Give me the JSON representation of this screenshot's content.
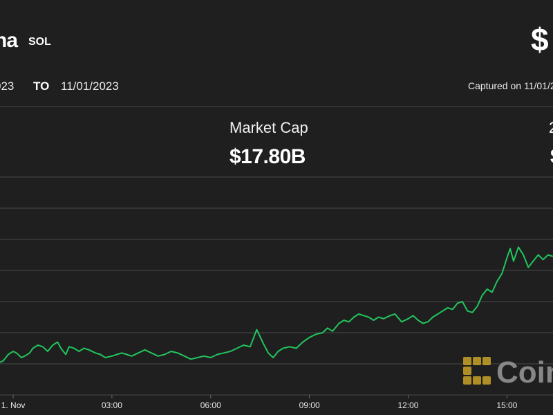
{
  "header": {
    "asset_name": "na",
    "asset_symbol": "SOL",
    "price": "$",
    "date_from": "023",
    "date_sep": "TO",
    "date_to": "11/01/2023",
    "captured": "Captured on 11/01/2"
  },
  "stats": {
    "market_cap_label": "Market Cap",
    "market_cap_value": "$17.80B",
    "volume_label_partial": "2",
    "volume_value_partial": "$"
  },
  "watermark": {
    "text": "Coin",
    "icon": "coindesk-logo-icon",
    "color": "#c9a227"
  },
  "chart_data": {
    "type": "line",
    "color": "#22c55e",
    "x_tick_labels": [
      "1. Nov",
      "03:00",
      "06:00",
      "09:00",
      "12:00",
      "15:00"
    ],
    "x_tick_hours": [
      0,
      3,
      6,
      9,
      12,
      15
    ],
    "x_range_hours": [
      -0.4,
      16.4
    ],
    "y_range": [
      0,
      7
    ],
    "grid": true,
    "series": [
      {
        "hours": [
          -0.4,
          -0.3,
          -0.15,
          0,
          0.1,
          0.25,
          0.35,
          0.5,
          0.6,
          0.75,
          0.9,
          1.05,
          1.2,
          1.35,
          1.45,
          1.6,
          1.7,
          1.85,
          2.0,
          2.15,
          2.3,
          2.5,
          2.65,
          2.8,
          3.0,
          3.15,
          3.3,
          3.45,
          3.6,
          3.8,
          4.0,
          4.2,
          4.4,
          4.6,
          4.8,
          5.0,
          5.2,
          5.4,
          5.6,
          5.8,
          6.0,
          6.2,
          6.4,
          6.6,
          6.8,
          7.0,
          7.2,
          7.4,
          7.6,
          7.75,
          7.9,
          8.05,
          8.2,
          8.4,
          8.6,
          8.8,
          9.0,
          9.2,
          9.4,
          9.55,
          9.7,
          9.9,
          10.05,
          10.2,
          10.35,
          10.5,
          10.65,
          10.8,
          10.95,
          11.1,
          11.25,
          11.45,
          11.6,
          11.8,
          12.0,
          12.15,
          12.3,
          12.45,
          12.6,
          12.75,
          12.9,
          13.05,
          13.2,
          13.35,
          13.5,
          13.65,
          13.8,
          13.95,
          14.1,
          14.25,
          14.4,
          14.55,
          14.7,
          14.85,
          15.0,
          15.1,
          15.2,
          15.35,
          15.5,
          15.65,
          15.8,
          15.95,
          16.1,
          16.25,
          16.4
        ],
        "values": [
          1.05,
          1.1,
          1.3,
          1.4,
          1.35,
          1.2,
          1.25,
          1.35,
          1.5,
          1.6,
          1.55,
          1.4,
          1.6,
          1.7,
          1.5,
          1.3,
          1.55,
          1.5,
          1.4,
          1.5,
          1.45,
          1.35,
          1.3,
          1.2,
          1.25,
          1.3,
          1.35,
          1.3,
          1.25,
          1.35,
          1.45,
          1.35,
          1.25,
          1.3,
          1.4,
          1.35,
          1.25,
          1.15,
          1.2,
          1.25,
          1.2,
          1.3,
          1.35,
          1.4,
          1.5,
          1.6,
          1.55,
          2.1,
          1.65,
          1.35,
          1.2,
          1.4,
          1.5,
          1.55,
          1.5,
          1.7,
          1.85,
          1.95,
          2.0,
          2.15,
          2.05,
          2.3,
          2.4,
          2.35,
          2.5,
          2.6,
          2.55,
          2.5,
          2.4,
          2.5,
          2.45,
          2.55,
          2.6,
          2.35,
          2.45,
          2.55,
          2.4,
          2.3,
          2.35,
          2.5,
          2.6,
          2.7,
          2.8,
          2.75,
          2.95,
          3.0,
          2.7,
          2.65,
          2.85,
          3.2,
          3.4,
          3.3,
          3.65,
          3.9,
          4.4,
          4.7,
          4.3,
          4.75,
          4.5,
          4.1,
          4.3,
          4.5,
          4.35,
          4.5,
          4.45
        ]
      }
    ]
  }
}
